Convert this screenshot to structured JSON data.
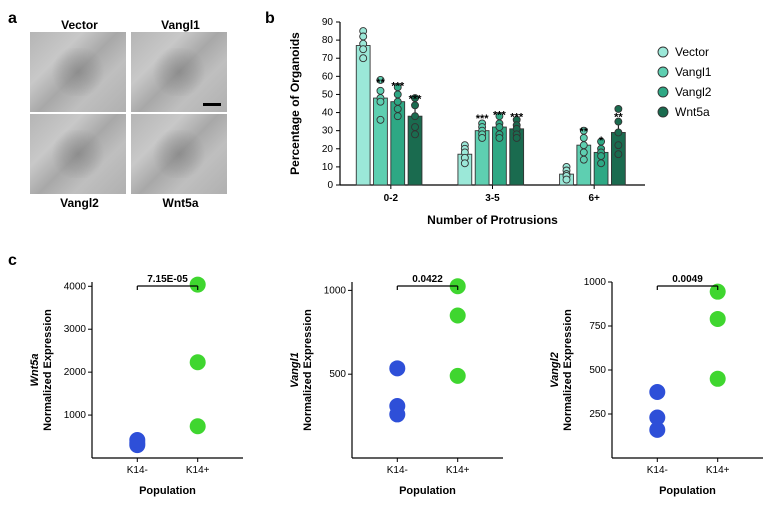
{
  "panel_labels": {
    "a": "a",
    "b": "b",
    "c": "c"
  },
  "panel_a": {
    "labels": [
      "Vector",
      "Vangl1",
      "Vangl2",
      "Wnt5a"
    ]
  },
  "panel_b": {
    "type": "bar_grouped_scatter",
    "ylabel": "Percentage of Organoids",
    "xlabel": "Number of Protrusions",
    "ylim": [
      0,
      90
    ],
    "ytick_step": 10,
    "groups": [
      "0-2",
      "3-5",
      "6+"
    ],
    "series": [
      {
        "name": "Vector",
        "color": "#9be8d8",
        "edge": "#333333"
      },
      {
        "name": "Vangl1",
        "color": "#5ecfb1",
        "edge": "#333333"
      },
      {
        "name": "Vangl2",
        "color": "#2ea884",
        "edge": "#333333"
      },
      {
        "name": "Wnt5a",
        "color": "#1a6b4f",
        "edge": "#333333"
      }
    ],
    "means": [
      [
        77,
        48,
        46,
        38
      ],
      [
        17,
        30,
        32,
        31
      ],
      [
        6,
        22,
        18,
        29
      ]
    ],
    "err": [
      [
        4,
        5,
        5,
        6
      ],
      [
        3,
        3,
        3,
        3
      ],
      [
        2,
        4,
        3,
        5
      ]
    ],
    "points": [
      [
        [
          85,
          82,
          78,
          75,
          70
        ],
        [
          58,
          52,
          48,
          46,
          36
        ],
        [
          54,
          50,
          46,
          42,
          38
        ],
        [
          48,
          44,
          38,
          32,
          28
        ]
      ],
      [
        [
          22,
          20,
          18,
          15,
          12
        ],
        [
          34,
          32,
          30,
          28,
          26
        ],
        [
          38,
          34,
          32,
          28,
          26
        ],
        [
          36,
          33,
          31,
          28,
          26
        ]
      ],
      [
        [
          10,
          8,
          6,
          5,
          3
        ],
        [
          30,
          26,
          22,
          18,
          14
        ],
        [
          24,
          20,
          18,
          16,
          12
        ],
        [
          42,
          35,
          29,
          22,
          17
        ]
      ]
    ],
    "signif": [
      [
        "",
        "**",
        "***",
        "***"
      ],
      [
        "",
        "***",
        "***",
        "***"
      ],
      [
        "",
        "**",
        "*",
        "**"
      ]
    ],
    "axis_font": 12,
    "legend_font": 12,
    "tick_font": 10,
    "bar_width": 0.8
  },
  "panel_c": {
    "type": "scatter",
    "xlabel": "Population",
    "xticks": [
      "K14-",
      "K14+"
    ],
    "axis_font": 11,
    "tick_font": 10,
    "plots": [
      {
        "ylabel_prefix": "Wnt5a",
        "pvalue": "7.15E-05",
        "ylim": [
          0,
          4100
        ],
        "yticks": [
          1000,
          2000,
          3000,
          4000
        ],
        "pointsA": [
          350,
          300,
          420
        ],
        "colorA": "#2e4fd8",
        "pointsB": [
          740,
          2230,
          4040
        ],
        "colorB": "#3fd62f",
        "marker_r": 8
      },
      {
        "ylabel_prefix": "Vangl1",
        "pvalue": "0.0422",
        "ylim": [
          0,
          1050
        ],
        "yticks": [
          500,
          1000
        ],
        "pointsA": [
          310,
          260,
          535
        ],
        "colorA": "#2e4fd8",
        "pointsB": [
          490,
          850,
          1025
        ],
        "colorB": "#3fd62f",
        "marker_r": 8
      },
      {
        "ylabel_prefix": "Vangl2",
        "pvalue": "0.0049",
        "ylim": [
          0,
          1000
        ],
        "yticks": [
          250,
          500,
          750,
          1000
        ],
        "pointsA": [
          160,
          230,
          375
        ],
        "colorA": "#2e4fd8",
        "pointsB": [
          450,
          790,
          945
        ],
        "colorB": "#3fd62f",
        "marker_r": 8
      }
    ]
  },
  "colors": {
    "axis": "#000000",
    "bg": "#ffffff"
  }
}
